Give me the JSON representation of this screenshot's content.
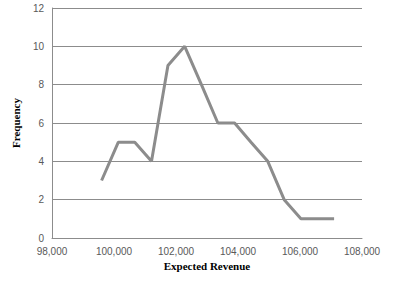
{
  "chart_data": {
    "type": "line",
    "x_label": "Expected Revenue",
    "y_label": "Frequency",
    "x": [
      99600,
      100140,
      100670,
      101210,
      101740,
      102280,
      102820,
      103350,
      103890,
      104420,
      104960,
      105490,
      106030,
      106560,
      107100
    ],
    "values": [
      3,
      5,
      5,
      4,
      9,
      10,
      8,
      6,
      6,
      5,
      4,
      2,
      1,
      1,
      1
    ],
    "color": "#8c8c8c",
    "xlim": [
      98000,
      108000
    ],
    "xticks": [
      98000,
      100000,
      102000,
      104000,
      106000,
      108000
    ],
    "ylim": [
      0,
      12
    ],
    "yticks": [
      0,
      2,
      4,
      6,
      8,
      10,
      12
    ],
    "grid": true
  }
}
